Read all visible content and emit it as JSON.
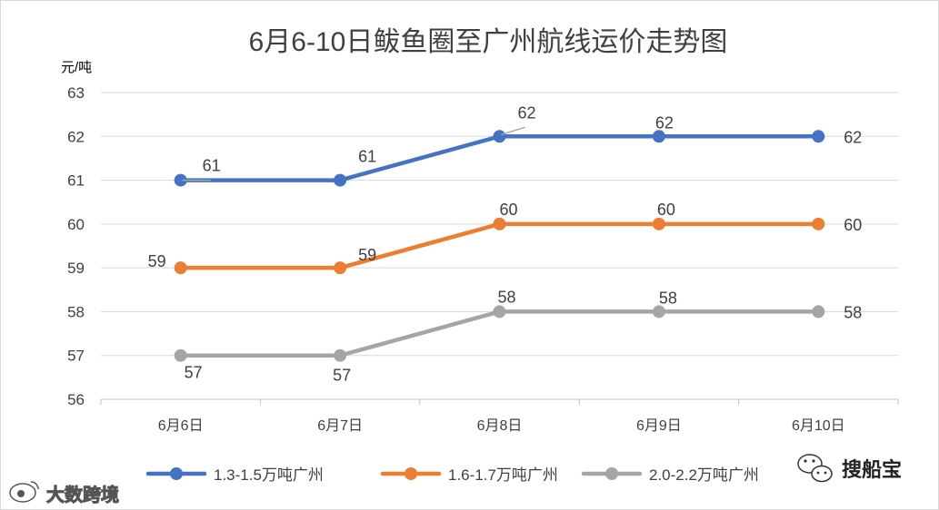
{
  "chart_data": {
    "type": "line",
    "title": "6月6-10日鲅鱼圈至广州航线运价走势图",
    "ylabel": "元/吨",
    "xlabel": "",
    "categories": [
      "6月6日",
      "6月7日",
      "6月8日",
      "6月9日",
      "6月10日"
    ],
    "ylim": [
      56,
      63
    ],
    "yticks": [
      56,
      57,
      58,
      59,
      60,
      61,
      62,
      63
    ],
    "grid": true,
    "legend_position": "bottom",
    "series": [
      {
        "name": "1.3-1.5万吨广州",
        "color": "#4472C4",
        "values": [
          61,
          61,
          62,
          62,
          62
        ]
      },
      {
        "name": "1.6-1.7万吨广州",
        "color": "#ED7D31",
        "values": [
          59,
          59,
          60,
          60,
          60
        ]
      },
      {
        "name": "2.0-2.2万吨广州",
        "color": "#A5A5A5",
        "values": [
          57,
          57,
          58,
          58,
          58
        ]
      }
    ]
  },
  "watermarks": {
    "left": "大数跨境",
    "right": "搜船宝",
    "left_icon": "weibo-icon",
    "right_icon": "wechat-icon"
  }
}
